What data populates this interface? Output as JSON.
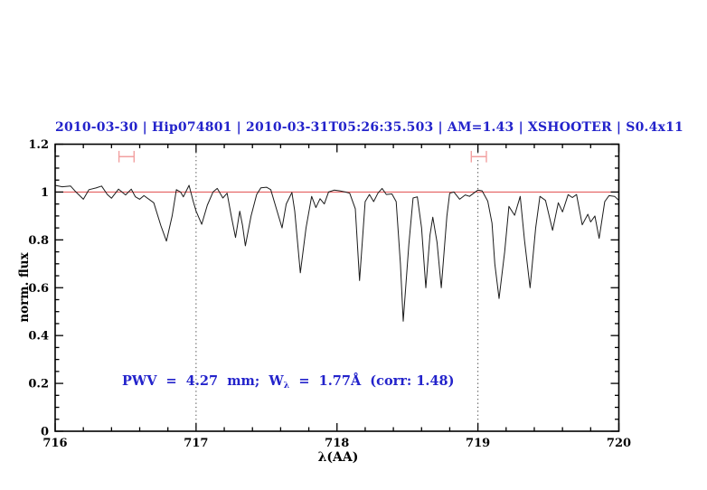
{
  "chart_data": {
    "type": "line",
    "title": "2010-03-30 | Hip074801 | 2010-03-31T05:26:35.503 | AM=1.43 | XSHOOTER | S0.4x11",
    "xlabel": "λ(AA)",
    "ylabel": "norm. flux",
    "xlim": [
      716,
      720
    ],
    "ylim": [
      0,
      1.2
    ],
    "x_major_ticks": [
      716,
      717,
      718,
      719,
      720
    ],
    "x_tick_labels": [
      "716",
      "717",
      "718",
      "719",
      "720"
    ],
    "x_minor_step": 0.2,
    "y_major_ticks": [
      0,
      0.2,
      0.4,
      0.6,
      0.8,
      1,
      1.2
    ],
    "y_tick_labels": [
      "0",
      "0.2",
      "0.4",
      "0.6",
      "0.8",
      "1",
      "1.2"
    ],
    "y_minor_step": 0.05,
    "grid": false,
    "legend": null,
    "dotted_vlines": [
      717,
      719
    ],
    "continuum_line_y": 1.0,
    "ew_markers": [
      {
        "x1": 716.453,
        "x2": 716.56,
        "y": 1.148,
        "cap_half_height": 0.024
      },
      {
        "x1": 718.953,
        "x2": 719.06,
        "y": 1.148,
        "cap_half_height": 0.024
      }
    ],
    "annotation": {
      "pre": "PWV  =  4.27  mm;  W",
      "sub": "λ",
      "post": "  =  1.77Å  (corr: 1.48)",
      "x": 716.48,
      "y": 0.205
    },
    "colors": {
      "title_text": "#2323cb",
      "annotation_text": "#2323cb",
      "continuum_line": "#e46060",
      "ew_marker": "#f2a0a0",
      "spectrum_line": "#1b1b1b",
      "axis": "#000000",
      "dotted_vline": "#3c3c3c"
    },
    "series": [
      {
        "name": "normalized-telluric-spectrum",
        "x": [
          716.0,
          716.05,
          716.11,
          716.14,
          716.2,
          716.24,
          716.29,
          716.33,
          716.37,
          716.4,
          716.45,
          716.5,
          716.54,
          716.57,
          716.6,
          716.63,
          716.7,
          716.75,
          716.79,
          716.83,
          716.86,
          716.89,
          716.91,
          716.95,
          716.98,
          717.0,
          717.04,
          717.08,
          717.12,
          717.15,
          717.19,
          717.22,
          717.25,
          717.28,
          717.31,
          717.33,
          717.35,
          717.39,
          717.43,
          717.46,
          717.5,
          717.53,
          717.57,
          717.61,
          717.64,
          717.68,
          717.7,
          717.74,
          717.78,
          717.82,
          717.85,
          717.88,
          717.91,
          717.94,
          717.98,
          718.02,
          718.06,
          718.09,
          718.13,
          718.16,
          718.2,
          718.23,
          718.26,
          718.29,
          718.32,
          718.35,
          718.39,
          718.42,
          718.45,
          718.47,
          718.51,
          718.54,
          718.57,
          718.6,
          718.63,
          718.66,
          718.68,
          718.71,
          718.74,
          718.78,
          718.8,
          718.83,
          718.87,
          718.91,
          718.94,
          718.97,
          719.0,
          719.03,
          719.07,
          719.1,
          719.12,
          719.15,
          719.19,
          719.22,
          719.26,
          719.3,
          719.33,
          719.37,
          719.41,
          719.44,
          719.48,
          719.53,
          719.57,
          719.6,
          719.64,
          719.67,
          719.7,
          719.74,
          719.78,
          719.8,
          719.83,
          719.86,
          719.9,
          719.93,
          719.97,
          720.0
        ],
        "y": [
          1.028,
          1.022,
          1.025,
          1.005,
          0.97,
          1.01,
          1.017,
          1.025,
          0.99,
          0.974,
          1.012,
          0.988,
          1.012,
          0.98,
          0.97,
          0.985,
          0.955,
          0.86,
          0.795,
          0.9,
          1.01,
          1.0,
          0.98,
          1.028,
          0.96,
          0.92,
          0.865,
          0.945,
          1.0,
          1.015,
          0.975,
          0.995,
          0.9,
          0.81,
          0.92,
          0.86,
          0.775,
          0.9,
          0.99,
          1.018,
          1.02,
          1.01,
          0.93,
          0.85,
          0.95,
          0.998,
          0.92,
          0.662,
          0.85,
          0.982,
          0.935,
          0.972,
          0.95,
          1.0,
          1.008,
          1.005,
          1.0,
          0.995,
          0.93,
          0.63,
          0.96,
          0.99,
          0.96,
          0.995,
          1.015,
          0.99,
          0.992,
          0.96,
          0.7,
          0.46,
          0.78,
          0.975,
          0.98,
          0.85,
          0.6,
          0.82,
          0.895,
          0.79,
          0.6,
          0.9,
          0.995,
          1.0,
          0.97,
          0.988,
          0.982,
          0.995,
          1.008,
          1.005,
          0.962,
          0.87,
          0.7,
          0.555,
          0.75,
          0.94,
          0.903,
          0.982,
          0.8,
          0.6,
          0.85,
          0.982,
          0.965,
          0.84,
          0.955,
          0.917,
          0.989,
          0.977,
          0.99,
          0.863,
          0.907,
          0.875,
          0.9,
          0.806,
          0.96,
          0.985,
          0.982,
          0.965
        ]
      }
    ]
  }
}
